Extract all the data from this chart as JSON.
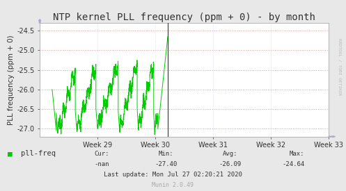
{
  "title": "NTP kernel PLL frequency (ppm + 0) - by month",
  "ylabel": "PLL frequency (ppm + 0)",
  "bg_color": "#e8e8e8",
  "plot_bg_color": "#ffffff",
  "grid_color_h": "#e0a0a0",
  "grid_color_v": "#d0d0ff",
  "line_color": "#00cc00",
  "vline_color": "#333333",
  "border_color": "#aaaaaa",
  "arrow_color": "#aaaacc",
  "ylim": [
    -27.2,
    -24.3
  ],
  "yticks": [
    -27.0,
    -26.5,
    -26.0,
    -25.5,
    -25.0,
    -24.5
  ],
  "xlim_days": [
    0,
    35
  ],
  "vline_day": 15.5,
  "week29_day": 7,
  "week30_day": 14,
  "week31_day": 21,
  "week32_day": 28,
  "week33_day": 35,
  "xtick_days": [
    7,
    14,
    21,
    28,
    35
  ],
  "xtick_labels": [
    "Week 29",
    "Week 30",
    "Week 31",
    "Week 32",
    "Week 33"
  ],
  "legend_label": "pll-freq",
  "legend_color": "#00cc00",
  "cur_label": "Cur:",
  "cur_value": "-nan",
  "min_label": "Min:",
  "min_value": "-27.40",
  "avg_label": "Avg:",
  "avg_value": "-26.09",
  "max_label": "Max:",
  "max_value": "-24.64",
  "last_update": "Last update: Mon Jul 27 02:20:21 2020",
  "munin_label": "Munin 2.0.49",
  "rrdtool_label": "RRDTOOL / TOBI OETIKER",
  "title_fontsize": 10,
  "axis_fontsize": 7.5,
  "tick_fontsize": 7,
  "legend_fontsize": 7.5,
  "footer_fontsize": 6.5
}
